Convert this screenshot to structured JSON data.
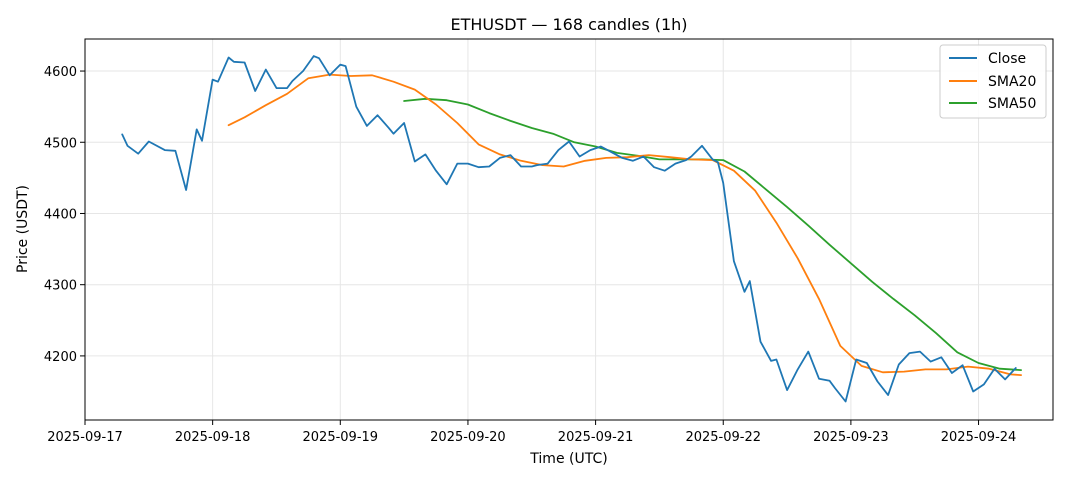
{
  "chart_data": {
    "type": "line",
    "title": "ETHUSDT — 168 candles (1h)",
    "xlabel": "Time (UTC)",
    "ylabel": "Price (USDT)",
    "x_ticks": [
      "2025-09-17",
      "2025-09-18",
      "2025-09-19",
      "2025-09-20",
      "2025-09-21",
      "2025-09-22",
      "2025-09-23",
      "2025-09-24"
    ],
    "y_ticks": [
      4200,
      4300,
      4400,
      4500,
      4600
    ],
    "xlim": [
      "2025-09-17T00:00",
      "2025-09-24T14:00"
    ],
    "ylim": [
      4110,
      4645
    ],
    "grid": true,
    "legend_position": "top-right",
    "colors": {
      "Close": "#1f77b4",
      "SMA20": "#ff7f0e",
      "SMA50": "#2ca02c"
    },
    "series": [
      {
        "name": "Close",
        "x": [
          "2025-09-17T07:00",
          "2025-09-17T08:00",
          "2025-09-17T10:00",
          "2025-09-17T12:00",
          "2025-09-17T15:00",
          "2025-09-17T17:00",
          "2025-09-17T19:00",
          "2025-09-17T21:00",
          "2025-09-17T22:00",
          "2025-09-18T00:00",
          "2025-09-18T01:00",
          "2025-09-18T03:00",
          "2025-09-18T04:00",
          "2025-09-18T06:00",
          "2025-09-18T08:00",
          "2025-09-18T10:00",
          "2025-09-18T12:00",
          "2025-09-18T14:00",
          "2025-09-18T15:00",
          "2025-09-18T17:00",
          "2025-09-18T19:00",
          "2025-09-18T20:00",
          "2025-09-18T22:00",
          "2025-09-19T00:00",
          "2025-09-19T01:00",
          "2025-09-19T03:00",
          "2025-09-19T05:00",
          "2025-09-19T07:00",
          "2025-09-19T09:00",
          "2025-09-19T10:00",
          "2025-09-19T12:00",
          "2025-09-19T14:00",
          "2025-09-19T16:00",
          "2025-09-19T18:00",
          "2025-09-19T20:00",
          "2025-09-19T22:00",
          "2025-09-20T00:00",
          "2025-09-20T02:00",
          "2025-09-20T04:00",
          "2025-09-20T06:00",
          "2025-09-20T08:00",
          "2025-09-20T10:00",
          "2025-09-20T12:00",
          "2025-09-20T13:00",
          "2025-09-20T15:00",
          "2025-09-20T17:00",
          "2025-09-20T19:00",
          "2025-09-20T21:00",
          "2025-09-20T23:00",
          "2025-09-21T01:00",
          "2025-09-21T03:00",
          "2025-09-21T05:00",
          "2025-09-21T07:00",
          "2025-09-21T09:00",
          "2025-09-21T11:00",
          "2025-09-21T13:00",
          "2025-09-21T15:00",
          "2025-09-21T17:00",
          "2025-09-21T18:00",
          "2025-09-21T20:00",
          "2025-09-21T22:00",
          "2025-09-21T23:00",
          "2025-09-22T00:00",
          "2025-09-22T02:00",
          "2025-09-22T04:00",
          "2025-09-22T05:00",
          "2025-09-22T07:00",
          "2025-09-22T09:00",
          "2025-09-22T10:00",
          "2025-09-22T12:00",
          "2025-09-22T14:00",
          "2025-09-22T16:00",
          "2025-09-22T18:00",
          "2025-09-22T20:00",
          "2025-09-22T21:00",
          "2025-09-22T23:00",
          "2025-09-23T01:00",
          "2025-09-23T03:00",
          "2025-09-23T05:00",
          "2025-09-23T07:00",
          "2025-09-23T09:00",
          "2025-09-23T11:00",
          "2025-09-23T13:00",
          "2025-09-23T15:00",
          "2025-09-23T17:00",
          "2025-09-23T19:00",
          "2025-09-23T21:00",
          "2025-09-23T23:00",
          "2025-09-24T01:00",
          "2025-09-24T03:00",
          "2025-09-24T05:00",
          "2025-09-24T07:00"
        ],
        "values": [
          4511,
          4495,
          4484,
          4501,
          4489,
          4488,
          4433,
          4518,
          4502,
          4588,
          4585,
          4619,
          4613,
          4612,
          4572,
          4602,
          4576,
          4576,
          4586,
          4600,
          4621,
          4618,
          4594,
          4609,
          4607,
          4550,
          4523,
          4538,
          4521,
          4512,
          4527,
          4473,
          4483,
          4460,
          4441,
          4470,
          4470,
          4465,
          4466,
          4478,
          4482,
          4466,
          4466,
          4468,
          4470,
          4489,
          4501,
          4480,
          4489,
          4494,
          4486,
          4478,
          4474,
          4480,
          4465,
          4460,
          4470,
          4475,
          4480,
          4495,
          4476,
          4472,
          4443,
          4333,
          4290,
          4305,
          4220,
          4193,
          4195,
          4152,
          4181,
          4206,
          4168,
          4165,
          4155,
          4136,
          4195,
          4190,
          4164,
          4145,
          4188,
          4204,
          4206,
          4192,
          4198,
          4176,
          4187,
          4150,
          4160,
          4182,
          4167,
          4183
        ]
      },
      {
        "name": "SMA20",
        "x": [
          "2025-09-18T03:00",
          "2025-09-18T06:00",
          "2025-09-18T10:00",
          "2025-09-18T14:00",
          "2025-09-18T18:00",
          "2025-09-18T22:00",
          "2025-09-19T02:00",
          "2025-09-19T06:00",
          "2025-09-19T10:00",
          "2025-09-19T14:00",
          "2025-09-19T18:00",
          "2025-09-19T22:00",
          "2025-09-20T02:00",
          "2025-09-20T06:00",
          "2025-09-20T10:00",
          "2025-09-20T14:00",
          "2025-09-20T18:00",
          "2025-09-20T22:00",
          "2025-09-21T02:00",
          "2025-09-21T06:00",
          "2025-09-21T10:00",
          "2025-09-21T14:00",
          "2025-09-21T18:00",
          "2025-09-21T22:00",
          "2025-09-22T02:00",
          "2025-09-22T06:00",
          "2025-09-22T10:00",
          "2025-09-22T14:00",
          "2025-09-22T18:00",
          "2025-09-22T22:00",
          "2025-09-23T02:00",
          "2025-09-23T06:00",
          "2025-09-23T10:00",
          "2025-09-23T14:00",
          "2025-09-23T18:00",
          "2025-09-23T22:00",
          "2025-09-24T02:00",
          "2025-09-24T06:00",
          "2025-09-24T08:00"
        ],
        "values": [
          4524,
          4535,
          4552,
          4568,
          4590,
          4595,
          4593,
          4594,
          4585,
          4574,
          4553,
          4527,
          4497,
          4483,
          4474,
          4468,
          4466,
          4474,
          4478,
          4479,
          4482,
          4479,
          4476,
          4475,
          4460,
          4432,
          4387,
          4337,
          4280,
          4214,
          4186,
          4177,
          4178,
          4181,
          4181,
          4185,
          4182,
          4174,
          4173
        ]
      },
      {
        "name": "SMA50",
        "x": [
          "2025-09-19T12:00",
          "2025-09-19T16:00",
          "2025-09-19T20:00",
          "2025-09-20T00:00",
          "2025-09-20T04:00",
          "2025-09-20T08:00",
          "2025-09-20T12:00",
          "2025-09-20T16:00",
          "2025-09-20T20:00",
          "2025-09-21T00:00",
          "2025-09-21T04:00",
          "2025-09-21T08:00",
          "2025-09-21T12:00",
          "2025-09-21T16:00",
          "2025-09-21T20:00",
          "2025-09-22T00:00",
          "2025-09-22T04:00",
          "2025-09-22T08:00",
          "2025-09-22T12:00",
          "2025-09-22T16:00",
          "2025-09-22T20:00",
          "2025-09-23T00:00",
          "2025-09-23T04:00",
          "2025-09-23T08:00",
          "2025-09-23T12:00",
          "2025-09-23T16:00",
          "2025-09-23T20:00",
          "2025-09-24T00:00",
          "2025-09-24T04:00",
          "2025-09-24T08:00"
        ],
        "values": [
          4558,
          4561,
          4559,
          4553,
          4541,
          4530,
          4520,
          4512,
          4500,
          4494,
          4485,
          4481,
          4476,
          4476,
          4476,
          4475,
          4459,
          4434,
          4409,
          4383,
          4356,
          4330,
          4304,
          4280,
          4257,
          4232,
          4205,
          4190,
          4182,
          4180
        ]
      }
    ]
  }
}
